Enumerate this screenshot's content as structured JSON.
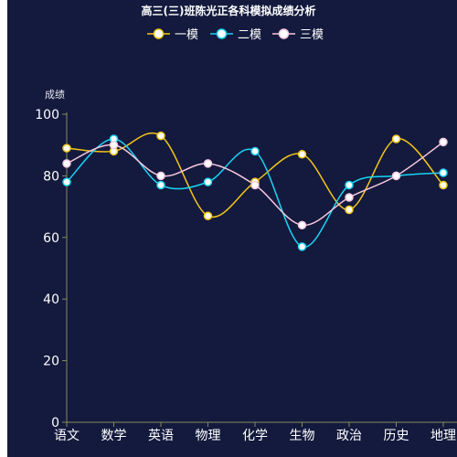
{
  "chart_data": {
    "type": "line",
    "title": "高三(三)班陈光正各科模拟成绩分析",
    "ylabel": "成绩",
    "xlabel": "",
    "ylim": [
      0,
      100
    ],
    "yticks": [
      0,
      20,
      40,
      60,
      80,
      100
    ],
    "smooth": true,
    "grid": false,
    "legend_position": "top-center",
    "categories": [
      "语文",
      "数学",
      "英语",
      "物理",
      "化学",
      "生物",
      "政治",
      "历史",
      "地理"
    ],
    "series": [
      {
        "name": "一模",
        "color": "#f5c518",
        "values": [
          89,
          88,
          93,
          67,
          78,
          87,
          69,
          92,
          77
        ]
      },
      {
        "name": "二模",
        "color": "#1ad3f5",
        "values": [
          78,
          92,
          77,
          78,
          88,
          57,
          77,
          80,
          81
        ]
      },
      {
        "name": "三模",
        "color": "#f7c7de",
        "values": [
          84,
          90,
          80,
          84,
          77,
          64,
          73,
          80,
          91
        ]
      }
    ]
  }
}
